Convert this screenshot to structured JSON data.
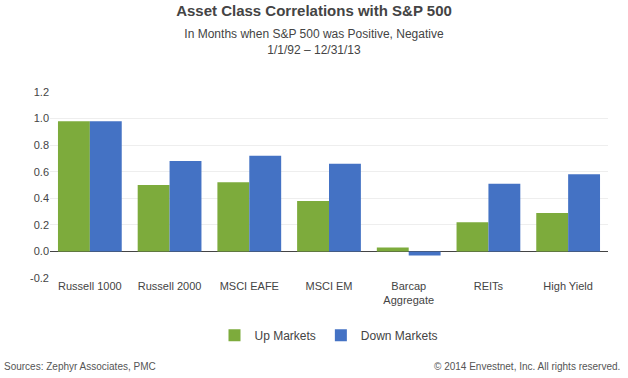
{
  "chart_data": {
    "type": "bar",
    "title": "Asset Class Correlations with S&P 500",
    "subtitle": [
      "In Months when S&P 500 was Positive, Negative",
      "1/1/92 – 12/31/13"
    ],
    "categories": [
      "Russell 1000",
      "Russell 2000",
      "MSCI EAFE",
      "MSCI EM",
      "Barcap\nAggregate",
      "REITs",
      "High Yield"
    ],
    "series": [
      {
        "name": "Up Markets",
        "color": "#7dab3c",
        "values": [
          0.98,
          0.5,
          0.52,
          0.38,
          0.03,
          0.22,
          0.29
        ]
      },
      {
        "name": "Down Markets",
        "color": "#4472c4",
        "values": [
          0.98,
          0.68,
          0.72,
          0.66,
          -0.03,
          0.51,
          0.58
        ]
      }
    ],
    "ylim": [
      -0.2,
      1.2
    ],
    "yticks": [
      -0.2,
      {
        "value": 0.0,
        "label": "0.0"
      },
      0.2,
      0.4,
      0.6,
      0.8,
      {
        "value": 1.0,
        "label": "1.0"
      },
      1.2
    ],
    "grid": true,
    "legend": "bottom",
    "annotations": [
      "Sources: Zephyr Associates, PMC",
      "© 2014 Envestnet, Inc. All rights reserved."
    ]
  }
}
